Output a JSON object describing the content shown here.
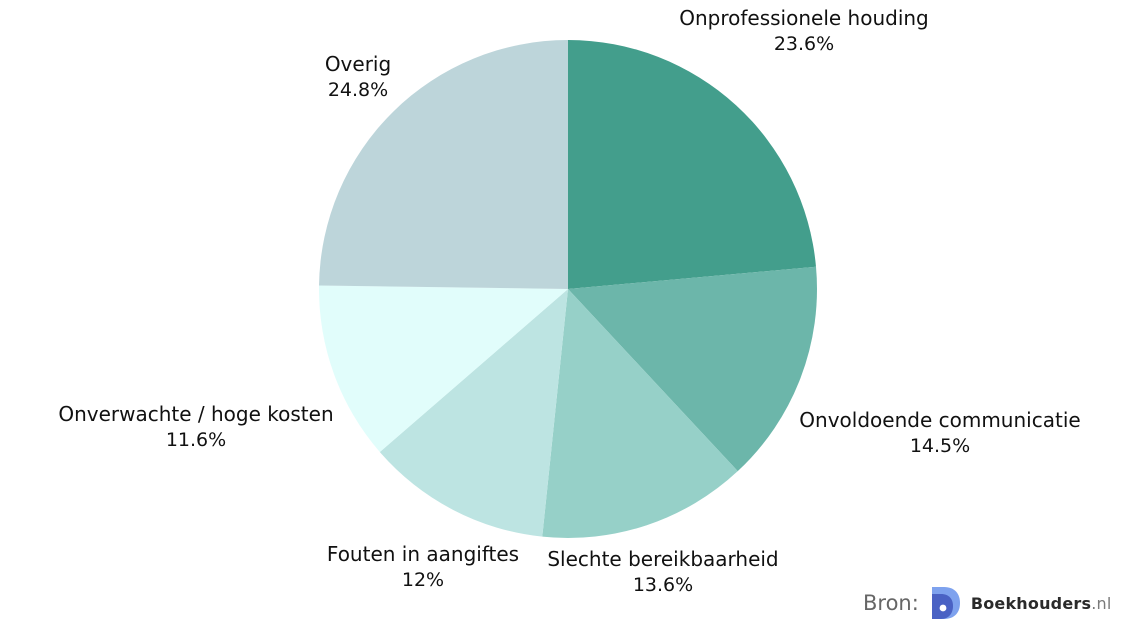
{
  "chart_data": {
    "type": "pie",
    "start_angle_deg": 0,
    "direction": "clockwise",
    "slices": [
      {
        "label": "Onprofessionele houding",
        "value": 23.6,
        "value_label": "23.6%",
        "color": "#439e8c"
      },
      {
        "label": "Onvoldoende communicatie",
        "value": 14.5,
        "value_label": "14.5%",
        "color": "#6cb6aa"
      },
      {
        "label": "Slechte bereikbaarheid",
        "value": 13.6,
        "value_label": "13.6%",
        "color": "#96d0c8"
      },
      {
        "label": "Fouten in aangiftes",
        "value": 12,
        "value_label": "12%",
        "color": "#bde4e2"
      },
      {
        "label": "Onverwachte / hoge kosten",
        "value": 11.6,
        "value_label": "11.6%",
        "color": "#e1fdfb"
      },
      {
        "label": "Overig",
        "value": 24.8,
        "value_label": "24.8%",
        "color": "#bdd5da"
      }
    ]
  },
  "source": {
    "prefix": "Bron:",
    "brand_name": "Boekhouders",
    "brand_tld": ".nl",
    "logo_colors": [
      "#4a62c4",
      "#7ea2ee",
      "#27378f"
    ]
  }
}
